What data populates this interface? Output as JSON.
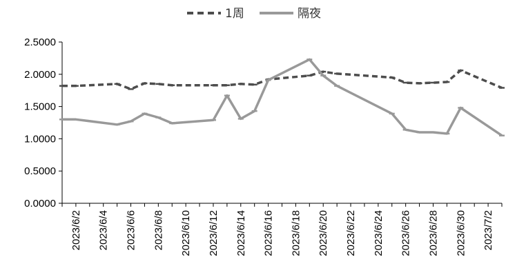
{
  "chart_data": {
    "type": "line",
    "title": "",
    "xlabel": "",
    "ylabel": "",
    "ylim": [
      0,
      2.5
    ],
    "yticks": [
      "0.0000",
      "0.5000",
      "1.0000",
      "1.5000",
      "2.0000",
      "2.5000"
    ],
    "xlim": [
      "2023-06-01",
      "2023-07-03"
    ],
    "xticks": [
      "2023/6/2",
      "2023/6/4",
      "2023/6/6",
      "2023/6/8",
      "2023/6/10",
      "2023/6/12",
      "2023/6/14",
      "2023/6/16",
      "2023/6/18",
      "2023/6/20",
      "2023/6/22",
      "2023/6/24",
      "2023/6/26",
      "2023/6/28",
      "2023/6/30",
      "2023/7/2"
    ],
    "grid": false,
    "legend": "top-center",
    "series": [
      {
        "name": "1周",
        "style": "dashed",
        "color": "#4d4d4d",
        "points": [
          {
            "x": "2023-06-01",
            "y": 1.82
          },
          {
            "x": "2023-06-02",
            "y": 1.82
          },
          {
            "x": "2023-06-05",
            "y": 1.85
          },
          {
            "x": "2023-06-06",
            "y": 1.77
          },
          {
            "x": "2023-06-07",
            "y": 1.86
          },
          {
            "x": "2023-06-08",
            "y": 1.85
          },
          {
            "x": "2023-06-09",
            "y": 1.83
          },
          {
            "x": "2023-06-12",
            "y": 1.83
          },
          {
            "x": "2023-06-13",
            "y": 1.83
          },
          {
            "x": "2023-06-14",
            "y": 1.85
          },
          {
            "x": "2023-06-15",
            "y": 1.84
          },
          {
            "x": "2023-06-16",
            "y": 1.92
          },
          {
            "x": "2023-06-19",
            "y": 1.98
          },
          {
            "x": "2023-06-20",
            "y": 2.04
          },
          {
            "x": "2023-06-21",
            "y": 2.01
          },
          {
            "x": "2023-06-25",
            "y": 1.95
          },
          {
            "x": "2023-06-26",
            "y": 1.87
          },
          {
            "x": "2023-06-27",
            "y": 1.86
          },
          {
            "x": "2023-06-28",
            "y": 1.87
          },
          {
            "x": "2023-06-29",
            "y": 1.88
          },
          {
            "x": "2023-06-30",
            "y": 2.06
          },
          {
            "x": "2023-07-03",
            "y": 1.79
          }
        ]
      },
      {
        "name": "隔夜",
        "style": "solid",
        "color": "#999999",
        "points": [
          {
            "x": "2023-06-01",
            "y": 1.3
          },
          {
            "x": "2023-06-02",
            "y": 1.3
          },
          {
            "x": "2023-06-05",
            "y": 1.22
          },
          {
            "x": "2023-06-06",
            "y": 1.27
          },
          {
            "x": "2023-06-07",
            "y": 1.39
          },
          {
            "x": "2023-06-08",
            "y": 1.33
          },
          {
            "x": "2023-06-09",
            "y": 1.24
          },
          {
            "x": "2023-06-12",
            "y": 1.29
          },
          {
            "x": "2023-06-13",
            "y": 1.67
          },
          {
            "x": "2023-06-14",
            "y": 1.31
          },
          {
            "x": "2023-06-15",
            "y": 1.43
          },
          {
            "x": "2023-06-16",
            "y": 1.91
          },
          {
            "x": "2023-06-19",
            "y": 2.23
          },
          {
            "x": "2023-06-20",
            "y": 1.98
          },
          {
            "x": "2023-06-21",
            "y": 1.82
          },
          {
            "x": "2023-06-25",
            "y": 1.39
          },
          {
            "x": "2023-06-26",
            "y": 1.14
          },
          {
            "x": "2023-06-27",
            "y": 1.1
          },
          {
            "x": "2023-06-28",
            "y": 1.1
          },
          {
            "x": "2023-06-29",
            "y": 1.08
          },
          {
            "x": "2023-06-30",
            "y": 1.48
          },
          {
            "x": "2023-07-03",
            "y": 1.05
          }
        ]
      }
    ]
  }
}
